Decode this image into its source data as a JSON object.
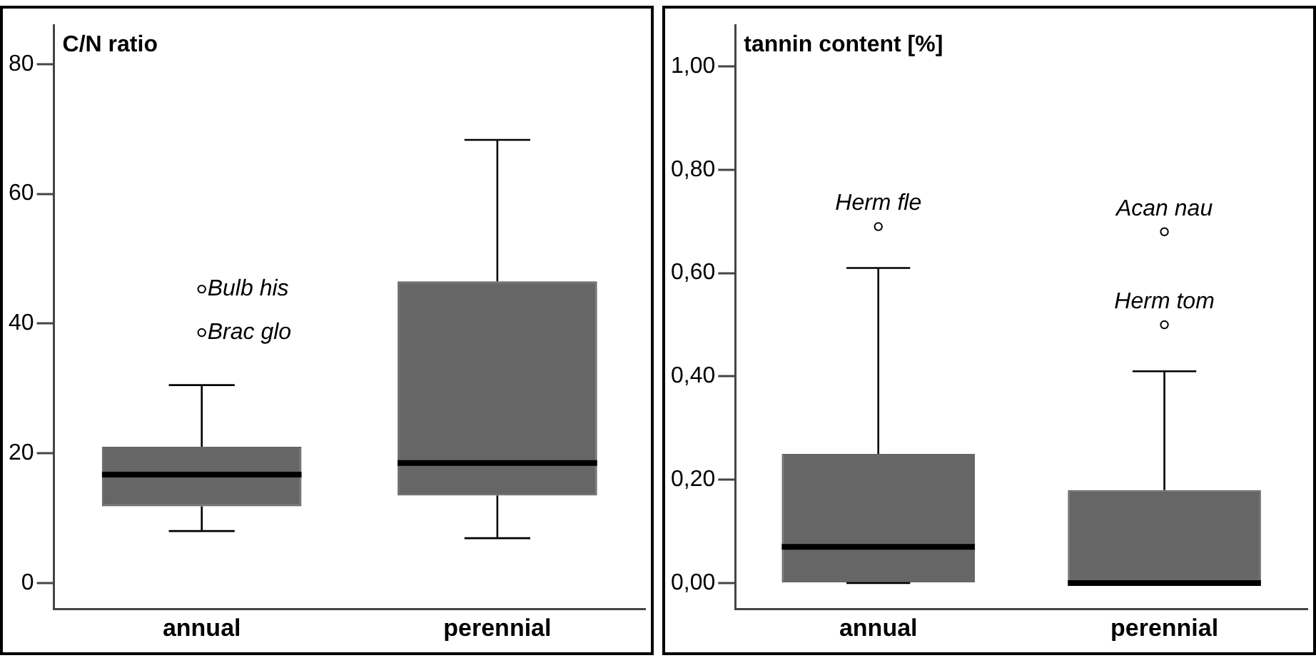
{
  "chart_data": [
    {
      "type": "box",
      "title": "C/N ratio",
      "categories": [
        "annual",
        "perennial"
      ],
      "colors": [
        "#666666",
        "#666666"
      ],
      "boxes": [
        {
          "low": 8.0,
          "q1": 11.8,
          "median": 16.7,
          "q3": 21.0,
          "high": 30.5,
          "outliers": [
            45.3,
            38.6
          ]
        },
        {
          "low": 6.9,
          "q1": 13.5,
          "median": 18.5,
          "q3": 46.5,
          "high": 68.3
        }
      ],
      "ylim": [
        -4,
        86
      ],
      "yticks": [
        0,
        20,
        40,
        60,
        80
      ],
      "grid": false,
      "annotations": [
        "Bulb his",
        "Brac glo"
      ]
    },
    {
      "type": "box",
      "title": "tannin content [%]",
      "categories": [
        "annual",
        "perennial"
      ],
      "colors": [
        "#666666",
        "#666666"
      ],
      "boxes": [
        {
          "low": 0.0,
          "q1": 0.0,
          "median": 0.07,
          "q3": 0.25,
          "high": 0.61,
          "outliers": [
            0.69
          ]
        },
        {
          "low": 0.0,
          "q1": 0.0,
          "median": 0.0,
          "q3": 0.18,
          "high": 0.41,
          "outliers": [
            0.68,
            0.5
          ]
        }
      ],
      "ylim": [
        -0.05,
        1.08
      ],
      "yticks": [
        {
          "value": 0,
          "label": "0,00"
        },
        {
          "value": 0.2,
          "label": "0,20"
        },
        {
          "value": 0.4,
          "label": "0,40"
        },
        {
          "value": 0.6,
          "label": "0,60"
        },
        {
          "value": 0.8,
          "label": "0,80"
        },
        {
          "value": 1,
          "label": "1,00"
        }
      ],
      "grid": false,
      "annotations": [
        "Herm fle",
        "Acan nau",
        "Herm tom"
      ]
    }
  ]
}
